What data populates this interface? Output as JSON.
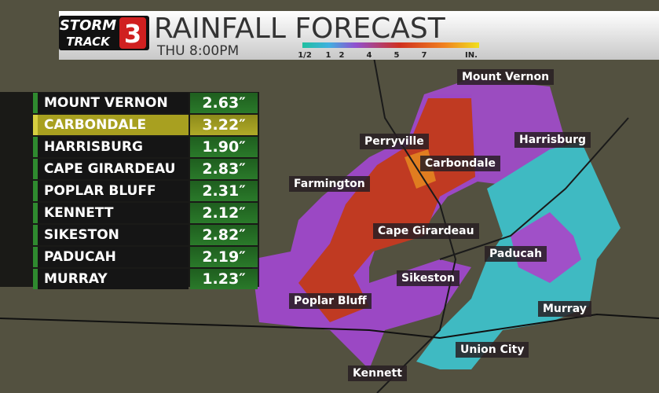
{
  "header": {
    "logo_top": "STORM",
    "logo_bottom": "TRACK",
    "logo_number": "3",
    "title": "RAINFALL FORECAST",
    "subtitle": "THU 8:00PM"
  },
  "legend": {
    "labels": [
      "1/2",
      "1",
      "2",
      "4",
      "5",
      "7",
      "IN."
    ]
  },
  "table": {
    "rows": [
      [
        "MOUNT VERNON",
        "2.63″"
      ],
      [
        "CARBONDALE",
        "3.22″"
      ],
      [
        "HARRISBURG",
        "1.90″"
      ],
      [
        "CAPE GIRARDEAU",
        "2.83″"
      ],
      [
        "POPLAR BLUFF",
        "2.31″"
      ],
      [
        "KENNETT",
        "2.12″"
      ],
      [
        "SIKESTON",
        "2.82″"
      ],
      [
        "PADUCAH",
        "2.19″"
      ],
      [
        "MURRAY",
        "1.23″"
      ]
    ]
  },
  "map": {
    "labels": [
      "Mount Vernon",
      "Perryville",
      "Carbondale",
      "Harrisburg",
      "Farmington",
      "Cape Girardeau",
      "Paducah",
      "Sikeston",
      "Poplar Bluff",
      "Murray",
      "Union City",
      "Kennett"
    ]
  }
}
